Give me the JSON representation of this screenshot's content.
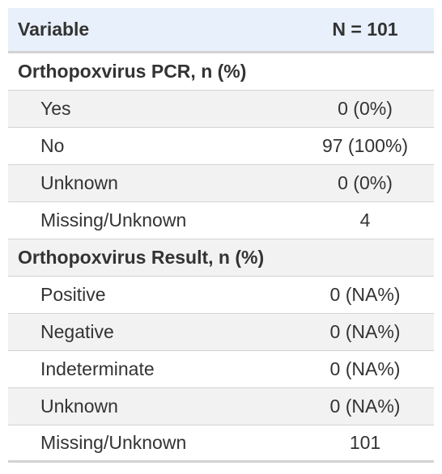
{
  "header": {
    "variable_label": "Variable",
    "n_label": "N = 101"
  },
  "sections": [
    {
      "title": "Orthopoxvirus PCR, n (%)",
      "rows": [
        {
          "label": "Yes",
          "value": "0 (0%)"
        },
        {
          "label": "No",
          "value": "97 (100%)"
        },
        {
          "label": "Unknown",
          "value": "0 (0%)"
        },
        {
          "label": "Missing/Unknown",
          "value": "4"
        }
      ]
    },
    {
      "title": "Orthopoxvirus Result, n (%)",
      "rows": [
        {
          "label": "Positive",
          "value": "0 (NA%)"
        },
        {
          "label": "Negative",
          "value": "0 (NA%)"
        },
        {
          "label": "Indeterminate",
          "value": "0 (NA%)"
        },
        {
          "label": "Unknown",
          "value": "0 (NA%)"
        },
        {
          "label": "Missing/Unknown",
          "value": "101"
        }
      ]
    }
  ]
}
